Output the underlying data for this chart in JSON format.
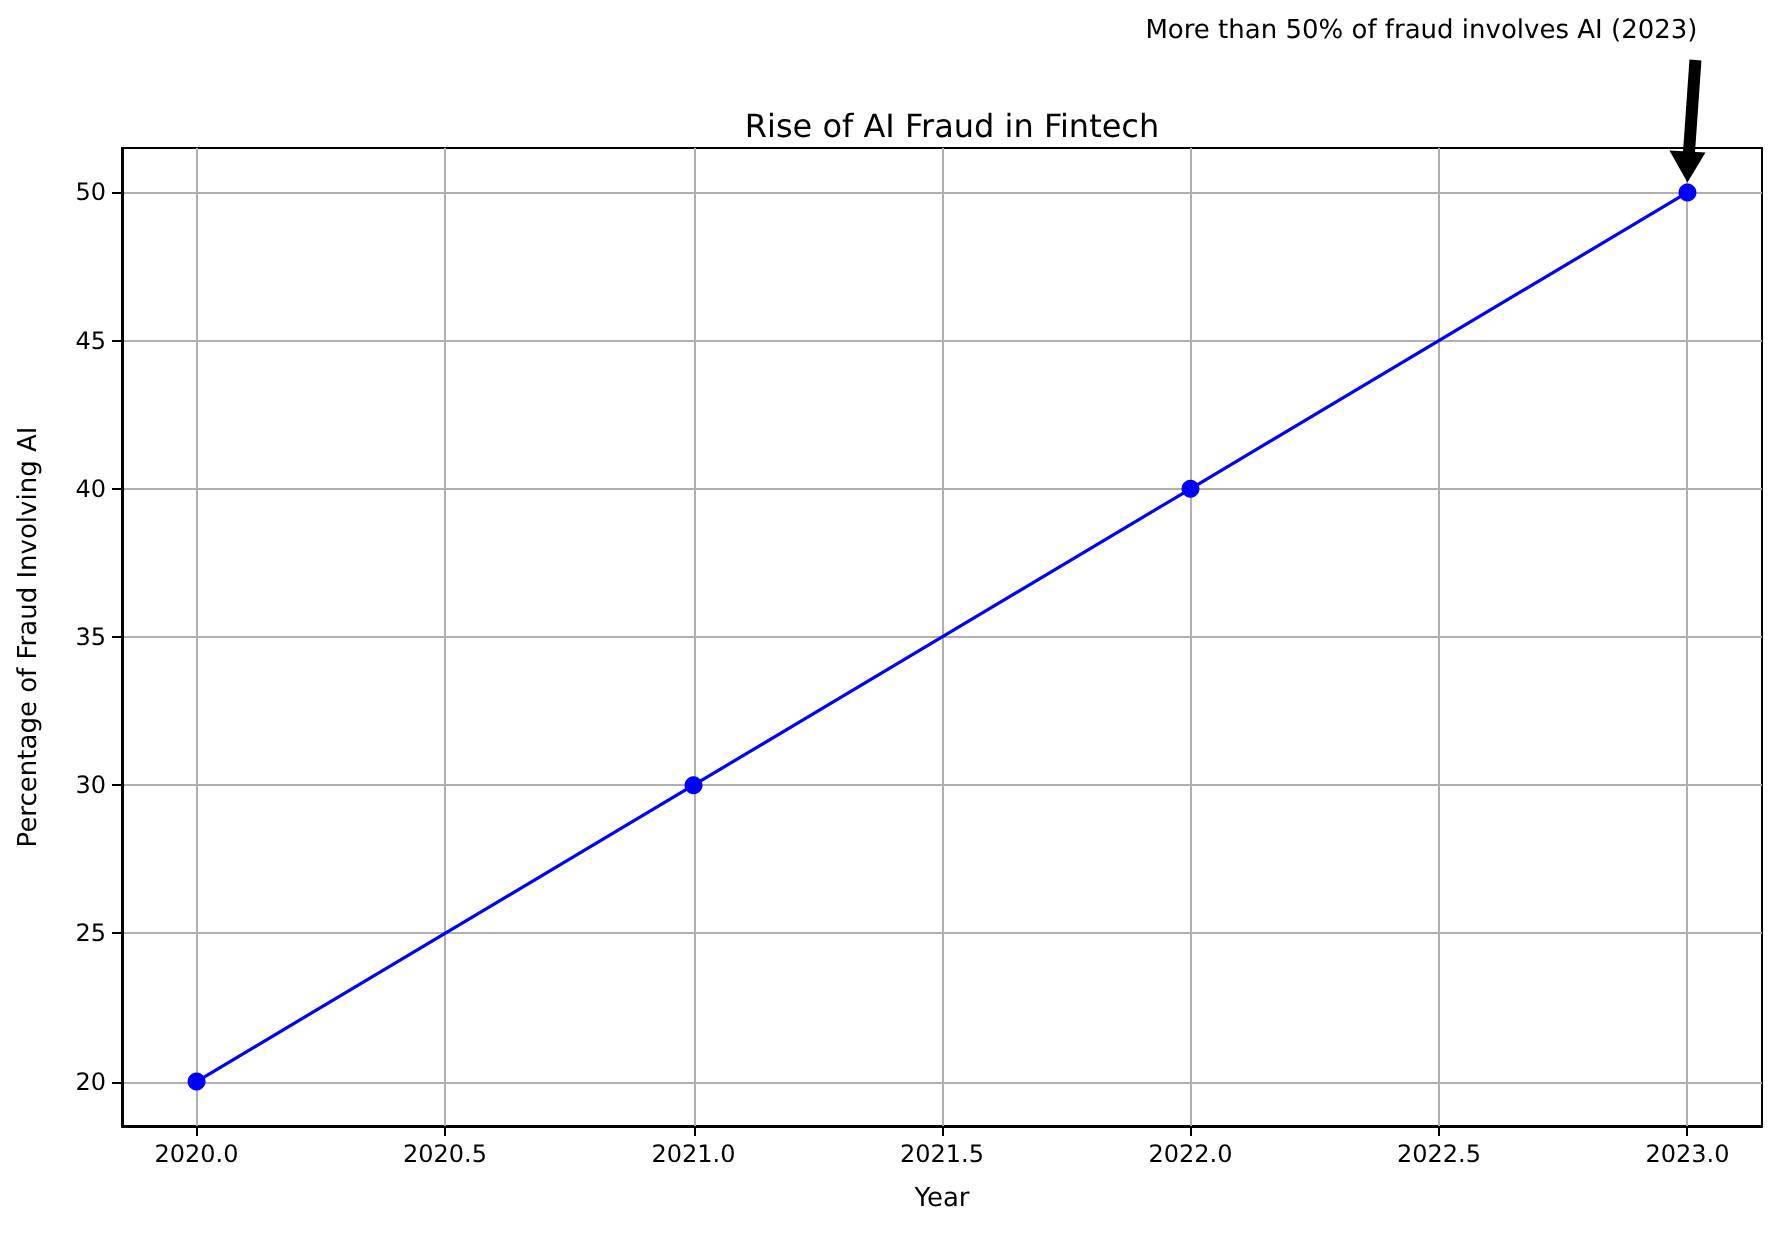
{
  "chart_data": {
    "type": "line",
    "title": "Rise of AI Fraud in Fintech",
    "xlabel": "Year",
    "ylabel": "Percentage of Fraud Involving AI",
    "x": [
      2020,
      2021,
      2022,
      2023
    ],
    "series": [
      {
        "color": "#0000ff",
        "values": [
          20,
          30,
          40,
          50
        ]
      }
    ],
    "xlim": [
      2019.85,
      2023.15
    ],
    "xticks": [
      {
        "value": 2020,
        "label": "2020.0"
      },
      {
        "value": 2020.5,
        "label": "2020.5"
      },
      {
        "value": 2021,
        "label": "2021.0"
      },
      {
        "value": 2021.5,
        "label": "2021.5"
      },
      {
        "value": 2022,
        "label": "2022.0"
      },
      {
        "value": 2022.5,
        "label": "2022.5"
      },
      {
        "value": 2023,
        "label": "2023.0"
      }
    ],
    "ylim": [
      18.5,
      51.5
    ],
    "yticks": [
      20,
      25,
      30,
      35,
      40,
      45,
      50
    ],
    "grid": true,
    "marker": "circle",
    "line_style": "solid",
    "annotations": [
      "More than 50% of fraud involves AI (2023)"
    ]
  }
}
